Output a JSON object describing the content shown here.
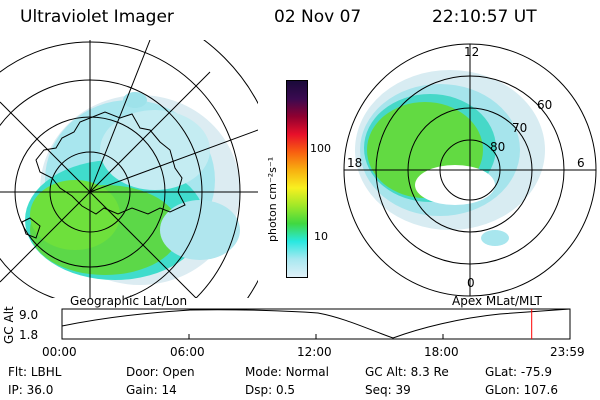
{
  "header": {
    "title": "Ultraviolet Imager",
    "date": "02 Nov 07",
    "time": "22:10:57 UT"
  },
  "maps": {
    "left_label": "Geographic Lat/Lon",
    "right_label": "Apex MLat/MLT",
    "right_mlt_labels": [
      "12",
      "18",
      "6",
      "0"
    ],
    "right_lat_labels": [
      "60",
      "70",
      "80"
    ]
  },
  "colorbar": {
    "unit_label": "photon cm⁻²s⁻¹",
    "ticks": [
      "100",
      "10"
    ],
    "colors": [
      "#1a0a3a",
      "#3a0a50",
      "#900030",
      "#e8102a",
      "#f86010",
      "#f8b010",
      "#f8f020",
      "#a0e828",
      "#40d840",
      "#28e8e0",
      "#a8e8f0",
      "#e0f0f8"
    ]
  },
  "altplot": {
    "ylabel": "GC Alt",
    "yticks": [
      "9.0",
      "1.8"
    ],
    "xticks": [
      "00:00",
      "06:00",
      "12:00",
      "18:00",
      "23:59"
    ],
    "current_fraction": 0.9246
  },
  "footer": {
    "row1": [
      {
        "key": "Flt:",
        "val": "LBHL"
      },
      {
        "key": "Door:",
        "val": "Open"
      },
      {
        "key": "Mode:",
        "val": "Normal"
      },
      {
        "key": "GC Alt:",
        "val": "8.3 Re"
      },
      {
        "key": "GLat:",
        "val": "-75.9"
      }
    ],
    "row2": [
      {
        "key": "IP:",
        "val": "36.0"
      },
      {
        "key": "Gain:",
        "val": "14"
      },
      {
        "key": "Dsp:",
        "val": "0.5"
      },
      {
        "key": "Seq:",
        "val": "39"
      },
      {
        "key": "GLon:",
        "val": "107.6"
      }
    ]
  }
}
